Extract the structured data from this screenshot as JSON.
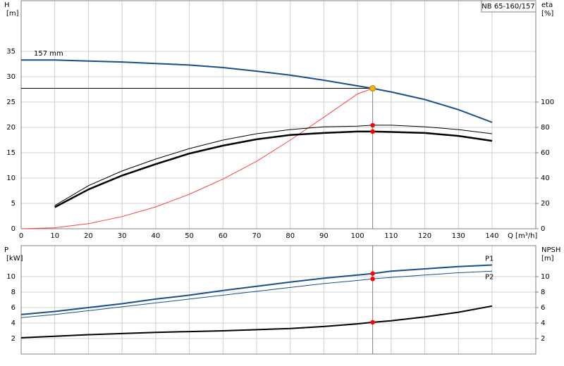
{
  "chart_data": [
    {
      "type": "line",
      "title": "NB 65-160/157",
      "annotation": "157 mm",
      "ylabel": [
        "H",
        "[m]"
      ],
      "y2label": [
        "eta",
        "[%]"
      ],
      "xlabel": "Q [m³/h]",
      "x": [
        0,
        10,
        20,
        30,
        40,
        50,
        60,
        70,
        80,
        90,
        100,
        104.5,
        110,
        120,
        130,
        140
      ],
      "xlim": [
        0,
        153
      ],
      "xticks": [
        0,
        10,
        20,
        30,
        40,
        50,
        60,
        70,
        80,
        90,
        100,
        110,
        120,
        130,
        140
      ],
      "ylim": [
        0,
        45
      ],
      "yticks": [
        0,
        5,
        10,
        15,
        20,
        25,
        30,
        35
      ],
      "y2lim": [
        0,
        180
      ],
      "y2ticks": [
        0,
        20,
        40,
        60,
        80,
        100
      ],
      "grid": true,
      "marker_color": "#ff0000",
      "duty_point": {
        "x": 104.5,
        "y": 27.7,
        "color": "#f5b400"
      },
      "series": [
        {
          "color": "#1a4f8a",
          "width": 2,
          "values": [
            33.3,
            33.3,
            33.1,
            32.9,
            32.6,
            32.3,
            31.8,
            31.1,
            30.3,
            29.3,
            28.2,
            27.7,
            27.0,
            25.5,
            23.5,
            21.0
          ]
        },
        {
          "color": "#ff4040",
          "width": 1,
          "values": [
            0,
            0.2,
            1.0,
            2.4,
            4.3,
            6.8,
            9.8,
            13.3,
            17.5,
            22.0,
            26.6,
            27.7,
            null,
            null,
            null,
            null
          ]
        },
        {
          "color": "#000000",
          "width": 1,
          "axis": "y2",
          "markers": true,
          "values": [
            null,
            18.3,
            34,
            45.6,
            55,
            63.3,
            70,
            75,
            78.3,
            80.5,
            81,
            81.7,
            81.7,
            80.5,
            78.3,
            75
          ]
        },
        {
          "color": "#000000",
          "width": 2.5,
          "axis": "y2",
          "markers": true,
          "values": [
            null,
            17,
            31,
            42,
            51,
            59.4,
            65.6,
            70.6,
            74,
            75.6,
            76.7,
            76.7,
            76.4,
            75.6,
            73.3,
            69.4
          ]
        }
      ]
    },
    {
      "type": "line",
      "ylabel": [
        "P",
        "[kW]"
      ],
      "y2label": [
        "NPSH",
        "[m]"
      ],
      "x": [
        0,
        10,
        20,
        30,
        40,
        50,
        60,
        70,
        80,
        90,
        100,
        104.5,
        110,
        120,
        130,
        140
      ],
      "ylim": [
        0,
        14
      ],
      "yticks": [
        2,
        4,
        6,
        8,
        10
      ],
      "y2lim": [
        0,
        14
      ],
      "y2ticks": [
        2,
        4,
        6,
        8,
        10
      ],
      "grid": true,
      "marker_color": "#ff0000",
      "series": [
        {
          "name": "P1",
          "color": "#1a4f8a",
          "width": 2,
          "markers": true,
          "values": [
            5.1,
            5.5,
            6.0,
            6.5,
            7.1,
            7.6,
            8.2,
            8.75,
            9.3,
            9.8,
            10.2,
            10.4,
            10.7,
            11.0,
            11.3,
            11.5
          ]
        },
        {
          "name": "P2",
          "color": "#1a4f8a",
          "width": 1,
          "markers": true,
          "values": [
            4.7,
            5.1,
            5.6,
            6.1,
            6.6,
            7.1,
            7.6,
            8.1,
            8.6,
            9.1,
            9.5,
            9.7,
            9.9,
            10.2,
            10.5,
            10.7
          ]
        },
        {
          "color": "#000000",
          "width": 2,
          "axis": "y2",
          "markers": true,
          "values": [
            2.1,
            2.3,
            2.5,
            2.65,
            2.8,
            2.9,
            3.0,
            3.15,
            3.3,
            3.55,
            3.9,
            4.1,
            4.3,
            4.8,
            5.4,
            6.2
          ]
        }
      ]
    }
  ]
}
